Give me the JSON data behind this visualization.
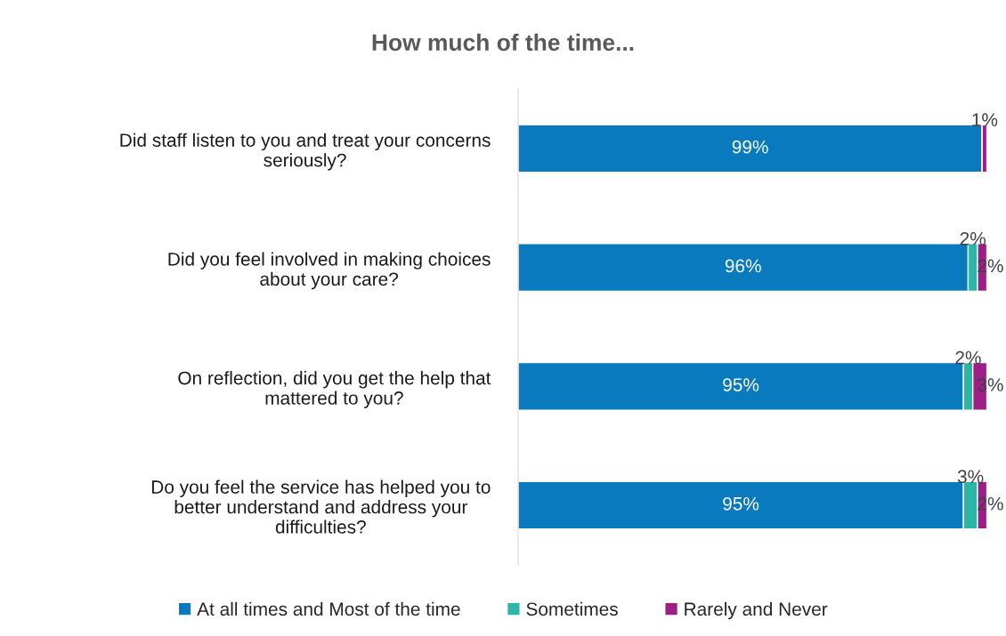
{
  "chart_data": {
    "type": "bar",
    "orientation": "horizontal",
    "stacked": true,
    "title": "How much of the time...",
    "categories": [
      "Did staff listen to you and treat your concerns\nseriously?",
      "Did you feel involved in making choices\nabout your care?",
      "On reflection, did you get the help that\nmattered to you?",
      "Do you feel the service has helped you to\nbetter understand and address your\ndifficulties?"
    ],
    "series": [
      {
        "name": "At all times and Most of the time",
        "color": "#0a7abf",
        "values": [
          99,
          96,
          95,
          95
        ],
        "value_labels": [
          "99%",
          "96%",
          "95%",
          "95%"
        ]
      },
      {
        "name": "Sometimes",
        "color": "#2db5a7",
        "values": [
          null,
          2,
          2,
          3
        ],
        "value_labels": [
          null,
          "2%",
          "2%",
          "3%"
        ]
      },
      {
        "name": "Rarely and Never",
        "color": "#9b1f86",
        "values": [
          1,
          2,
          3,
          2
        ],
        "value_labels": [
          "1%",
          "2%",
          "3%",
          "2%"
        ]
      }
    ],
    "legend": "bottom"
  }
}
